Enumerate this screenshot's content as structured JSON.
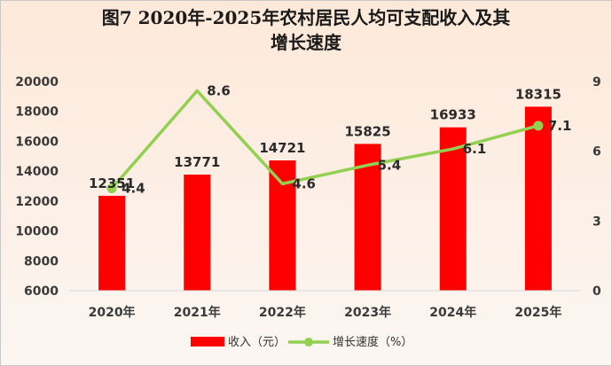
{
  "chart_data": {
    "type": "bar",
    "title_line1": "图7    2020年-2025年农村居民人均可支配收入及其",
    "title_line2": "增长速度",
    "categories": [
      "2020年",
      "2021年",
      "2022年",
      "2023年",
      "2024年",
      "2025年"
    ],
    "series": [
      {
        "name": "收入（元）",
        "type": "bar",
        "axis": "left",
        "color": "#ff0000",
        "values": [
          12351,
          13771,
          14721,
          15825,
          16933,
          18315
        ]
      },
      {
        "name": "增长速度（%）",
        "type": "line",
        "axis": "right",
        "color": "#92d050",
        "values": [
          4.4,
          8.6,
          4.6,
          5.4,
          6.1,
          7.1
        ]
      }
    ],
    "left_axis": {
      "ylim": [
        6000,
        20000
      ],
      "ticks": [
        6000,
        8000,
        10000,
        12000,
        14000,
        16000,
        18000,
        20000
      ]
    },
    "right_axis": {
      "ylim": [
        0,
        9
      ],
      "ticks": [
        0,
        3,
        6,
        9
      ]
    },
    "legend_position": "bottom",
    "grid": false
  }
}
